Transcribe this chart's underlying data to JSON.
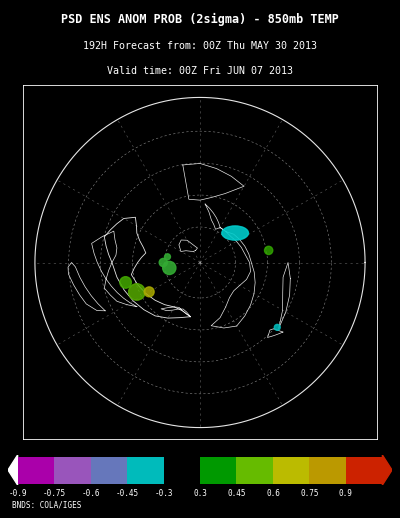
{
  "title_line1": "PSD ENS ANOM PROB (2sigma) - 850mb TEMP",
  "title_line2": "192H Forecast from: 00Z Thu MAY 30 2013",
  "title_line3": "Valid time: 00Z Fri JUN 07 2013",
  "background_color": "#000000",
  "title_color": "#ffffff",
  "colorbar_colors": [
    "#aa00aa",
    "#9955bb",
    "#6677bb",
    "#00bbbb",
    "#000000",
    "#009900",
    "#66bb00",
    "#bbbb00",
    "#bb9900",
    "#cc2200"
  ],
  "colorbar_labels": [
    "-0.9",
    "-0.75",
    "-0.6",
    "-0.45",
    "-0.3",
    "0.3",
    "0.45",
    "0.6",
    "0.75",
    "0.9"
  ],
  "credit_text": "BNDS: COLA/IGES",
  "font_family": "monospace",
  "fig_width": 4.0,
  "fig_height": 5.18,
  "dpi": 100
}
